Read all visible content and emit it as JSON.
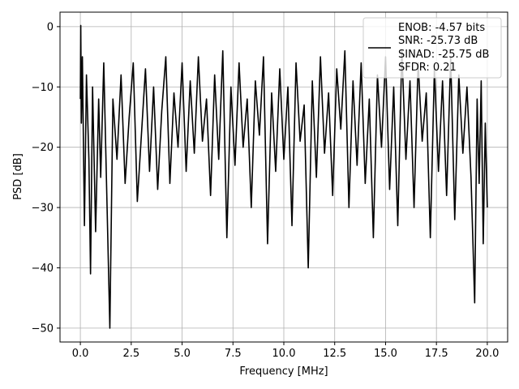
{
  "chart_data": {
    "type": "line",
    "title": "",
    "xlabel": "Frequency [MHz]",
    "ylabel": "PSD [dB]",
    "xlim": [
      -1.0,
      21.0
    ],
    "ylim": [
      -52.3,
      2.4
    ],
    "xticks": [
      0.0,
      2.5,
      5.0,
      7.5,
      10.0,
      12.5,
      15.0,
      17.5,
      20.0
    ],
    "xtick_labels": [
      "0.0",
      "2.5",
      "5.0",
      "7.5",
      "10.0",
      "12.5",
      "15.0",
      "17.5",
      "20.0"
    ],
    "yticks": [
      0,
      -10,
      -20,
      -30,
      -40,
      -50
    ],
    "ytick_labels": [
      "0",
      "−10",
      "−20",
      "−30",
      "−40",
      "−50"
    ],
    "grid": true,
    "legend_position": "upper right",
    "line_color": "#000000",
    "series": [
      {
        "legend_lines": [
          "ENOB: -4.57 bits",
          "SNR: -25.73 dB",
          "SINAD: -25.75 dB",
          "SFDR: 0.21"
        ],
        "x": [
          0,
          0.02,
          0.05,
          0.1,
          0.2,
          0.3,
          0.42,
          0.5,
          0.6,
          0.75,
          0.9,
          1.0,
          1.15,
          1.3,
          1.45,
          1.6,
          1.8,
          2.0,
          2.2,
          2.4,
          2.6,
          2.8,
          3.0,
          3.2,
          3.4,
          3.6,
          3.8,
          4.0,
          4.2,
          4.4,
          4.6,
          4.8,
          5.0,
          5.2,
          5.4,
          5.6,
          5.8,
          6.0,
          6.2,
          6.4,
          6.6,
          6.8,
          7.0,
          7.2,
          7.4,
          7.6,
          7.8,
          8.0,
          8.2,
          8.4,
          8.6,
          8.8,
          9.0,
          9.2,
          9.4,
          9.6,
          9.8,
          10.0,
          10.2,
          10.4,
          10.6,
          10.8,
          11.0,
          11.2,
          11.4,
          11.6,
          11.8,
          12.0,
          12.2,
          12.4,
          12.6,
          12.8,
          13.0,
          13.2,
          13.4,
          13.6,
          13.8,
          14.0,
          14.2,
          14.4,
          14.6,
          14.8,
          15.0,
          15.2,
          15.4,
          15.6,
          15.8,
          16.0,
          16.2,
          16.4,
          16.6,
          16.8,
          17.0,
          17.2,
          17.4,
          17.6,
          17.8,
          18.0,
          18.2,
          18.4,
          18.6,
          18.8,
          19.0,
          19.2,
          19.38,
          19.5,
          19.6,
          19.7,
          19.8,
          19.9,
          20.0
        ],
        "y": [
          -12,
          0.2,
          -16,
          -5,
          -33,
          -8,
          -22,
          -41,
          -10,
          -34,
          -12,
          -25,
          -6,
          -28,
          -50,
          -12,
          -22,
          -8,
          -26,
          -15,
          -6,
          -29,
          -18,
          -7,
          -24,
          -10,
          -27,
          -14,
          -5,
          -26,
          -11,
          -20,
          -6,
          -24,
          -9,
          -21,
          -5,
          -19,
          -12,
          -28,
          -8,
          -22,
          -4,
          -35,
          -10,
          -23,
          -6,
          -20,
          -12,
          -30,
          -9,
          -18,
          -5,
          -36,
          -11,
          -24,
          -7,
          -22,
          -10,
          -33,
          -6,
          -19,
          -13,
          -40,
          -9,
          -25,
          -5,
          -21,
          -11,
          -28,
          -7,
          -17,
          -4,
          -30,
          -9,
          -23,
          -6,
          -26,
          -12,
          -35,
          -8,
          -20,
          -5,
          -27,
          -10,
          -33,
          -4,
          -22,
          -9,
          -30,
          -6,
          -19,
          -11,
          -35,
          -7,
          -24,
          -9,
          -28,
          -5,
          -32,
          -8,
          -21,
          -10,
          -25,
          -45.8,
          -12,
          -26,
          -9,
          -36,
          -16,
          -30
        ]
      }
    ]
  }
}
